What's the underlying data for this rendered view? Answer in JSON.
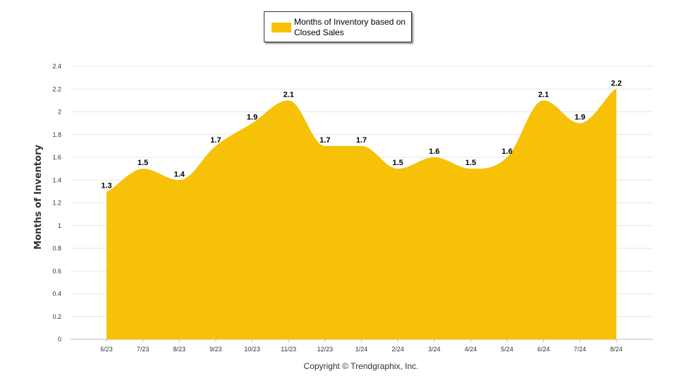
{
  "chart_data": {
    "type": "area",
    "categories": [
      "6/23",
      "7/23",
      "8/23",
      "9/23",
      "10/23",
      "11/23",
      "12/23",
      "1/24",
      "2/24",
      "3/24",
      "4/24",
      "5/24",
      "6/24",
      "7/24",
      "8/24"
    ],
    "series": [
      {
        "name": "Months of Inventory based on Closed Sales",
        "values": [
          1.3,
          1.5,
          1.4,
          1.7,
          1.9,
          2.1,
          1.7,
          1.7,
          1.5,
          1.6,
          1.5,
          1.6,
          2.1,
          1.9,
          2.2
        ],
        "color": "#F6C107"
      }
    ],
    "ylabel": "Months of Inventory",
    "ylim": [
      0,
      2.4
    ],
    "yticks": [
      "0",
      "0.2",
      "0.4",
      "0.6",
      "0.8",
      "1",
      "1.2",
      "1.4",
      "1.6",
      "1.8",
      "2",
      "2.2",
      "2.4"
    ],
    "grid": true,
    "legend_position": "top-center",
    "data_labels": [
      "1.3",
      "1.5",
      "1.4",
      "1.7",
      "1.9",
      "2.1",
      "1.7",
      "1.7",
      "1.5",
      "1.6",
      "1.5",
      "1.6",
      "2.1",
      "1.9",
      "2.2"
    ]
  },
  "legend": {
    "label": "Months of Inventory based on Closed Sales",
    "color": "#F6C107"
  },
  "footer": {
    "copyright": "Copyright © Trendgraphix, Inc."
  }
}
